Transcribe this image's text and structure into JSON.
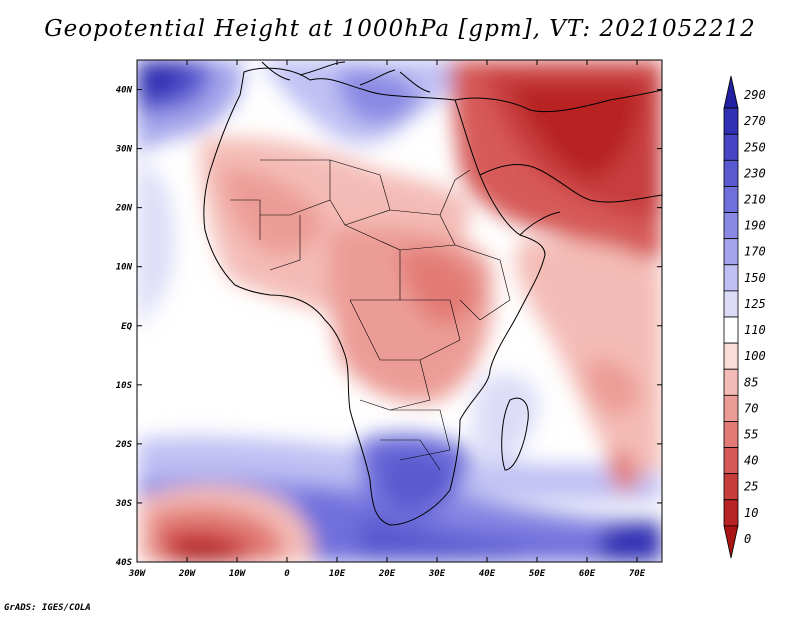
{
  "title": "Geopotential Height at 1000hPa [gpm], VT: 2021052212",
  "credit": "GrADS: IGES/COLA",
  "lon_labels": [
    "30W",
    "20W",
    "10W",
    "0",
    "10E",
    "20E",
    "30E",
    "40E",
    "50E",
    "60E",
    "70E"
  ],
  "lat_labels": [
    "40N",
    "30N",
    "20N",
    "10N",
    "EQ",
    "10S",
    "20S",
    "30S",
    "40S"
  ],
  "colorbar": {
    "labels": [
      "290",
      "270",
      "250",
      "230",
      "210",
      "190",
      "170",
      "150",
      "125",
      "110",
      "100",
      "85",
      "70",
      "55",
      "40",
      "25",
      "10",
      "0"
    ],
    "colors": [
      "#2020a0",
      "#3030b4",
      "#4646c4",
      "#5a5ad0",
      "#7070dc",
      "#8a8ae4",
      "#a4a4ec",
      "#c0c0f4",
      "#dcdcf8",
      "#ffffff",
      "#fadcd8",
      "#f4bcb6",
      "#ec9c96",
      "#e27a76",
      "#d65a58",
      "#c83c3c",
      "#b82424",
      "#a81414"
    ]
  },
  "map": {
    "lon_range": [
      -30,
      75
    ],
    "lat_range": [
      -40,
      45
    ],
    "field": "geopotential_height_1000hPa",
    "units": "gpm",
    "valid_time": "2021052212"
  }
}
